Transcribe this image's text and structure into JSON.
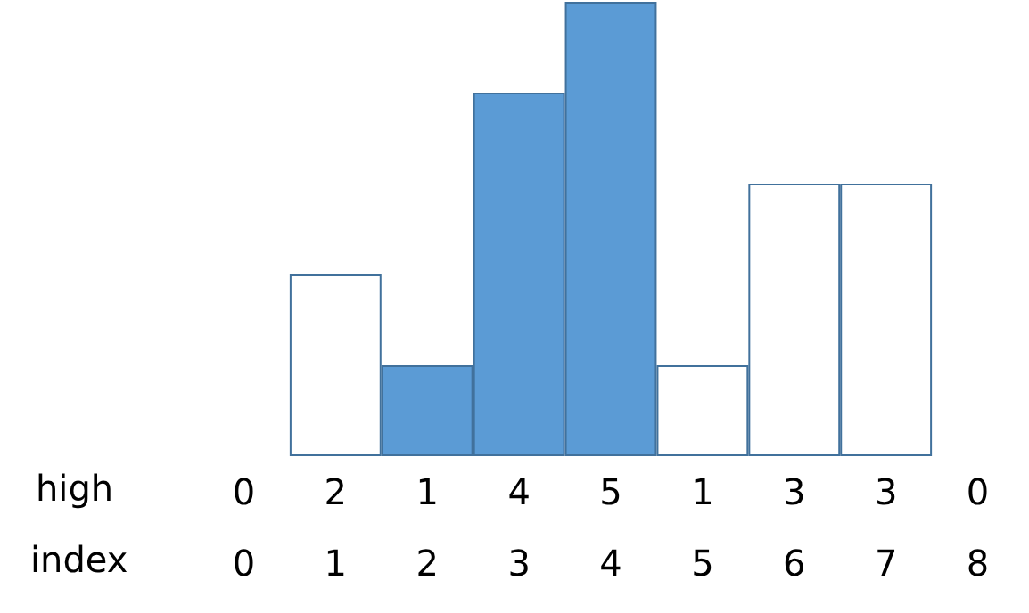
{
  "chart_data": {
    "type": "bar",
    "xlabel": "index",
    "ylabel": "high",
    "categories": [
      "0",
      "1",
      "2",
      "3",
      "4",
      "5",
      "6",
      "7",
      "8"
    ],
    "values": [
      0,
      2,
      1,
      4,
      5,
      1,
      3,
      3,
      0
    ],
    "colors": [
      "#ffffff",
      "#ffffff",
      "#5b9bd5",
      "#5b9bd5",
      "#5b9bd5",
      "#ffffff",
      "#ffffff",
      "#ffffff",
      "#ffffff"
    ],
    "data_labels": true,
    "grid": false
  }
}
